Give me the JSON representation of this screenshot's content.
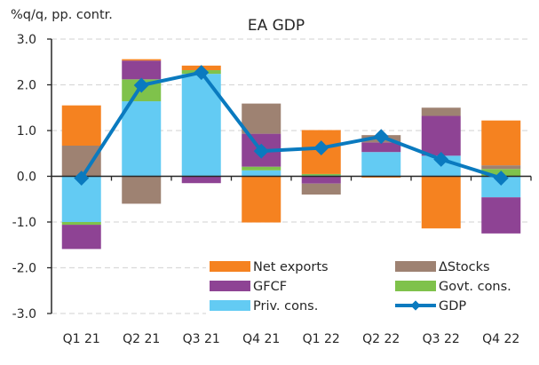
{
  "chart_data": {
    "type": "bar",
    "stacked": true,
    "title": "EA GDP",
    "ylabel": "%q/q, pp. contr.",
    "xlabel": "",
    "ylim": [
      -3.0,
      3.0
    ],
    "yticks": [
      "3.0",
      "2.0",
      "1.0",
      "0.0",
      "-1.0",
      "-2.0",
      "-3.0"
    ],
    "ytick_values": [
      3.0,
      2.0,
      1.0,
      0.0,
      -1.0,
      -2.0,
      -3.0
    ],
    "grid": "horizontal dashed",
    "legend_position": "bottom-right",
    "categories": [
      "Q1 21",
      "Q2 21",
      "Q3 21",
      "Q4 21",
      "Q1 22",
      "Q2 22",
      "Q3 22",
      "Q4 22"
    ],
    "series": [
      {
        "name": "Priv. cons.",
        "kind": "bar",
        "color": "#63CBF3",
        "values": [
          -1.0,
          1.64,
          2.24,
          0.13,
          0.02,
          0.53,
          0.45,
          -0.46
        ]
      },
      {
        "name": "Govt. cons.",
        "kind": "bar",
        "color": "#7FC24B",
        "values": [
          -0.06,
          0.48,
          0.08,
          0.08,
          0.03,
          0.0,
          0.0,
          0.16
        ]
      },
      {
        "name": "GFCF",
        "kind": "bar",
        "color": "#8E4394",
        "values": [
          -0.53,
          0.41,
          -0.15,
          0.72,
          -0.16,
          0.21,
          0.87,
          -0.79
        ]
      },
      {
        "name": "ΔStocks",
        "kind": "bar",
        "color": "#9E8272",
        "values": [
          0.67,
          -0.6,
          0.0,
          0.66,
          -0.24,
          0.16,
          0.18,
          0.08
        ]
      },
      {
        "name": "Net exports",
        "kind": "bar",
        "color": "#F58220",
        "values": [
          0.88,
          0.03,
          0.1,
          -1.01,
          0.96,
          -0.03,
          -1.14,
          0.98
        ]
      },
      {
        "name": "GDP",
        "kind": "line",
        "color": "#0A7ABF",
        "values": [
          -0.04,
          1.99,
          2.27,
          0.55,
          0.62,
          0.87,
          0.37,
          -0.04
        ]
      }
    ],
    "legend": [
      {
        "name": "Net exports",
        "kind": "bar",
        "color": "#F58220"
      },
      {
        "name": "ΔStocks",
        "kind": "bar",
        "color": "#9E8272"
      },
      {
        "name": "GFCF",
        "kind": "bar",
        "color": "#8E4394"
      },
      {
        "name": "Govt. cons.",
        "kind": "bar",
        "color": "#7FC24B"
      },
      {
        "name": "Priv. cons.",
        "kind": "bar",
        "color": "#63CBF3"
      },
      {
        "name": "GDP",
        "kind": "line",
        "color": "#0A7ABF"
      }
    ]
  }
}
